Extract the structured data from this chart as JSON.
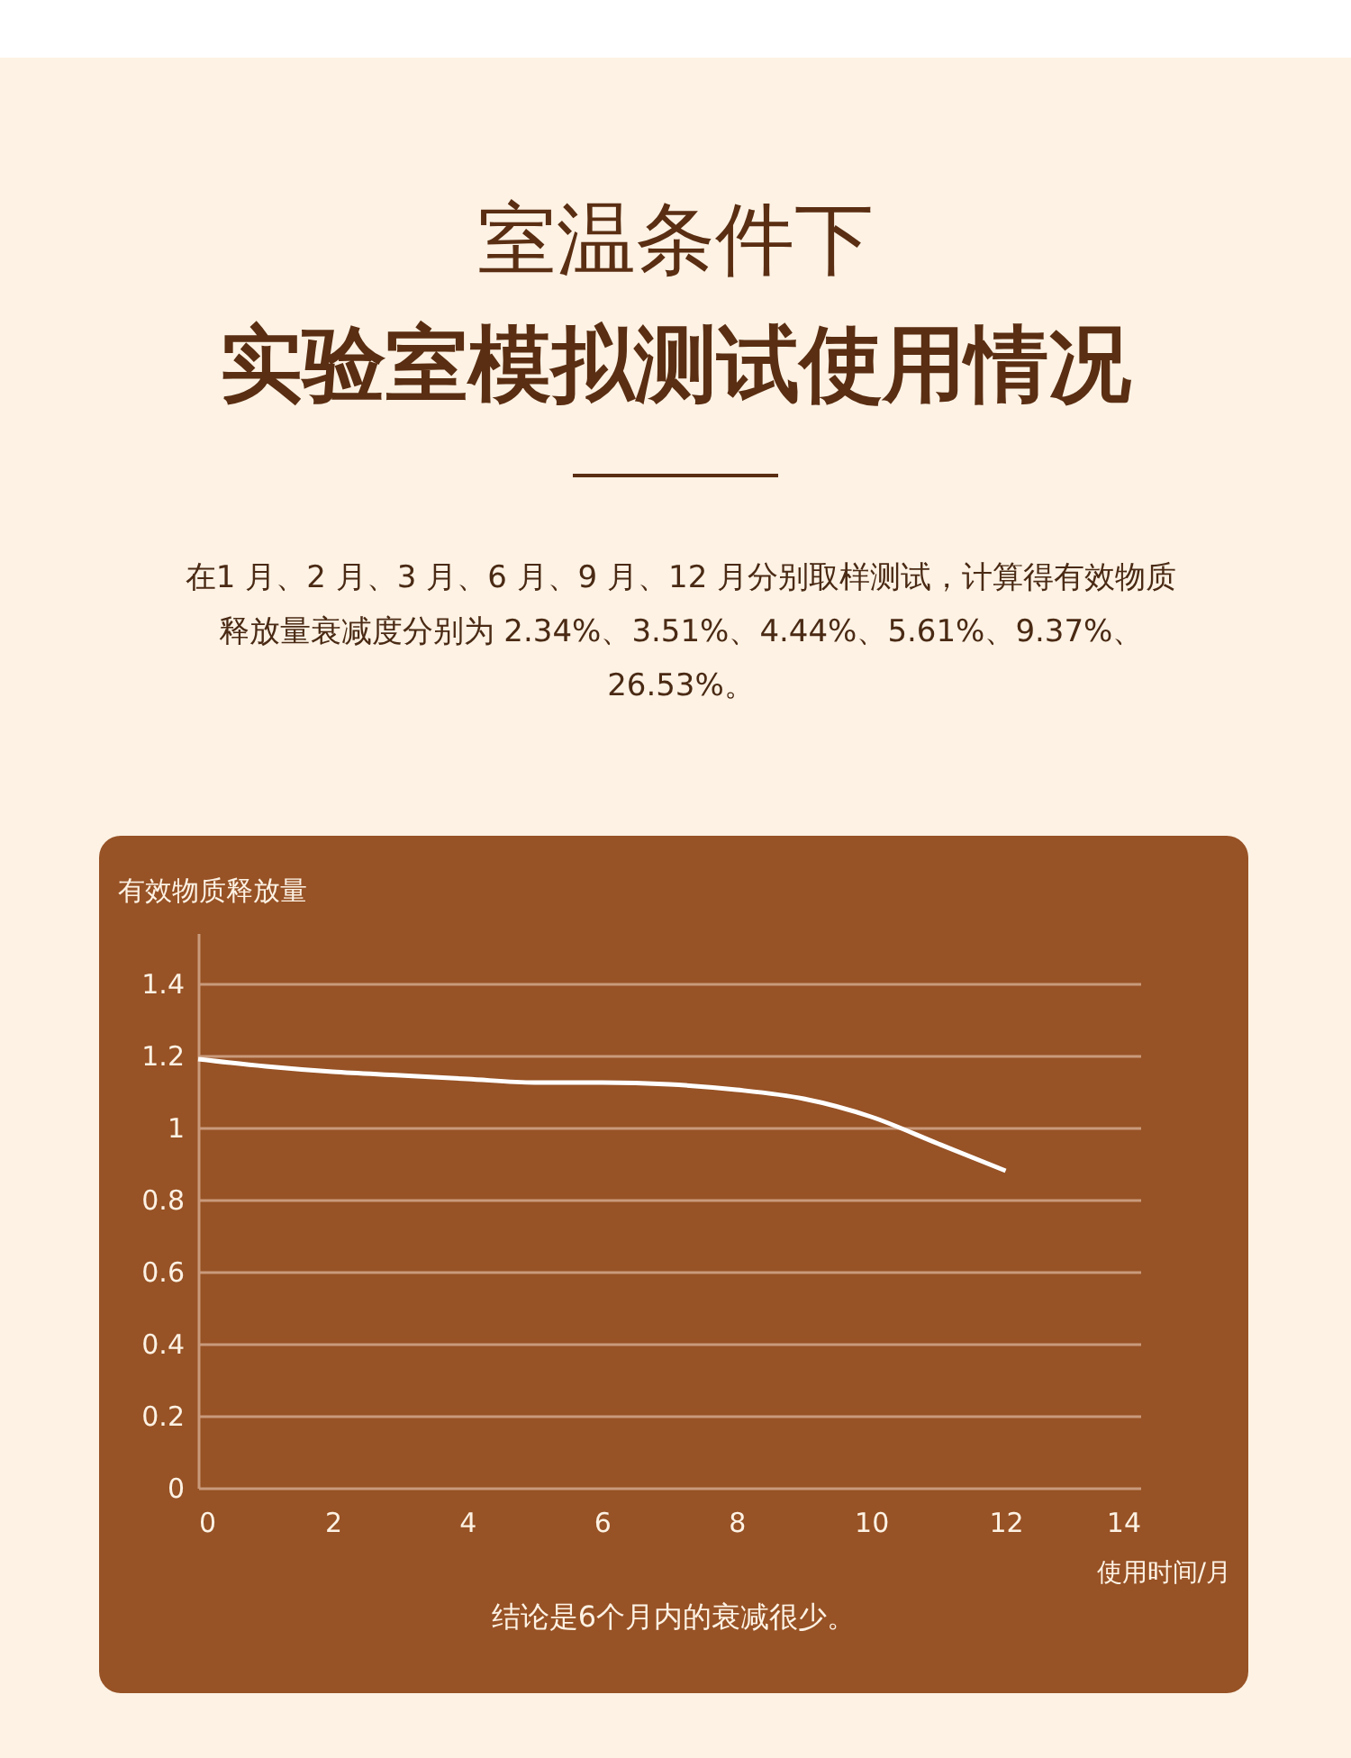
{
  "chart_data": {
    "type": "line",
    "title": "室温条件下",
    "subtitle": "实验室模拟测试使用情况",
    "annotations": [
      "在1 月、2 月、3 月、6 月、9 月、12 月分别取样测试，计算得有效物质释放量衰减度分别为 2.34%、3.51%、4.44%、5.61%、9.37%、26.53%。",
      "结论是6个月内的衰减很少。"
    ],
    "ylabel": "有效物质释放量",
    "xlabel": "使用时间/月",
    "x": [
      0,
      1,
      2,
      3,
      4,
      5,
      6,
      7,
      8,
      9,
      10,
      11,
      12
    ],
    "series": [
      {
        "color": "#ffffff",
        "values": [
          1.19,
          1.17,
          1.155,
          1.145,
          1.135,
          1.125,
          1.125,
          1.12,
          1.105,
          1.08,
          1.03,
          0.955,
          0.88
        ]
      }
    ],
    "xlim": [
      0,
      14
    ],
    "xticks": [
      0,
      2,
      4,
      6,
      8,
      10,
      12,
      14
    ],
    "ylim": [
      0,
      1.54
    ],
    "yticks": [
      0,
      0.2,
      0.4,
      0.6,
      0.8,
      1,
      1.2,
      1.4
    ],
    "grid": "y"
  }
}
